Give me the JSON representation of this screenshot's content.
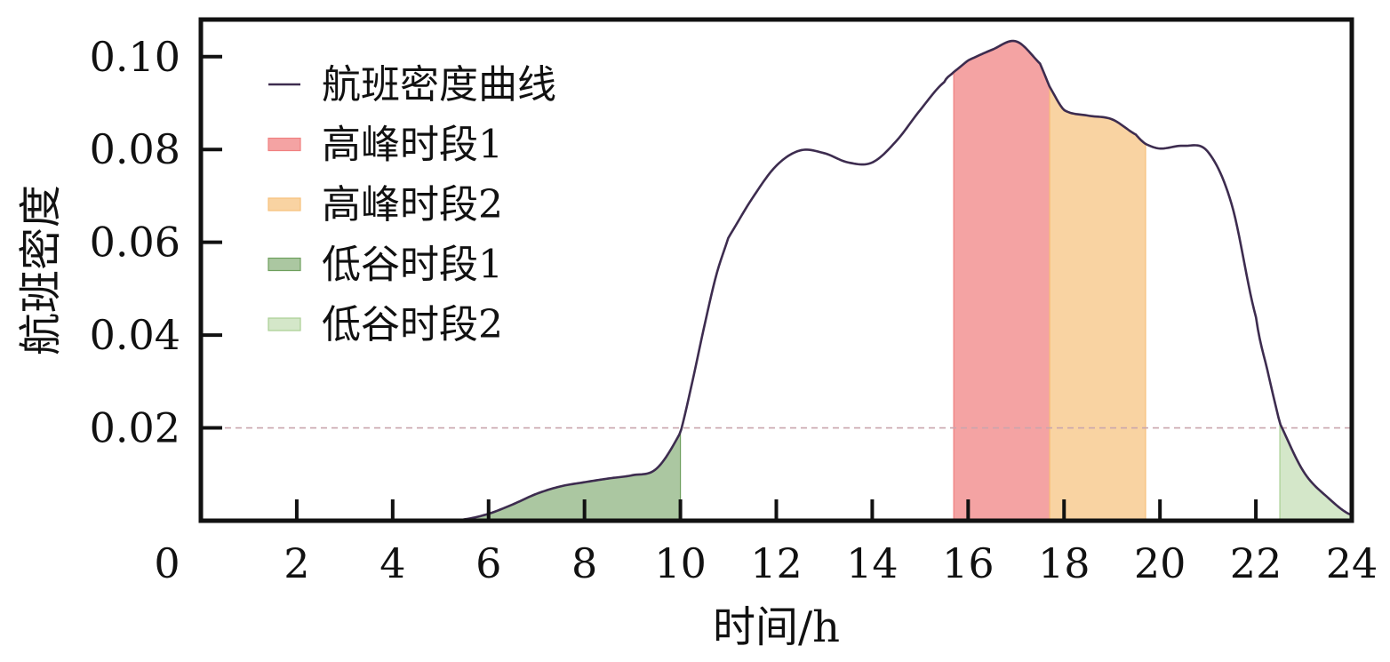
{
  "chart_data": {
    "type": "area",
    "xlabel": "时间/h",
    "ylabel": "航班密度",
    "xlim": [
      0,
      24
    ],
    "ylim": [
      0,
      0.108
    ],
    "x_ticks": [
      "0",
      "2",
      "4",
      "6",
      "8",
      "10",
      "12",
      "14",
      "16",
      "18",
      "20",
      "22",
      "24"
    ],
    "y_ticks": [
      "0.02",
      "0.04",
      "0.06",
      "0.08",
      "0.10"
    ],
    "threshold": 0.02,
    "curve": {
      "name": "航班密度曲线",
      "color": "#3d2c4f",
      "x": [
        0.5,
        5.0,
        5.5,
        6.0,
        6.5,
        7.0,
        7.5,
        8.0,
        8.5,
        9.0,
        9.5,
        10.0,
        10.25,
        10.5,
        10.75,
        11.0,
        11.5,
        12.0,
        12.5,
        13.0,
        13.5,
        14.0,
        14.5,
        15.0,
        15.5,
        15.7,
        16.0,
        16.5,
        17.0,
        17.5,
        17.7,
        18.0,
        18.5,
        19.0,
        19.5,
        19.7,
        20.0,
        20.5,
        21.0,
        21.5,
        22.0,
        22.25,
        22.5,
        23.0,
        23.5,
        24.0
      ],
      "y": [
        0.0,
        0.0,
        0.0003,
        0.0015,
        0.0035,
        0.0058,
        0.0074,
        0.0083,
        0.0091,
        0.0098,
        0.0112,
        0.019,
        0.03,
        0.042,
        0.053,
        0.061,
        0.0695,
        0.0765,
        0.0798,
        0.0792,
        0.0772,
        0.0772,
        0.0818,
        0.0885,
        0.0945,
        0.0967,
        0.0992,
        0.1015,
        0.1033,
        0.0985,
        0.0935,
        0.0885,
        0.0873,
        0.0865,
        0.0832,
        0.0812,
        0.0802,
        0.0808,
        0.0795,
        0.068,
        0.044,
        0.032,
        0.021,
        0.0105,
        0.005,
        0.0012
      ]
    },
    "segments": [
      {
        "name": "高峰时段1",
        "start": 15.7,
        "end": 17.7,
        "color": "#f08080",
        "opacity": 0.72
      },
      {
        "name": "高峰时段2",
        "start": 17.7,
        "end": 19.7,
        "color": "#f7c07a",
        "opacity": 0.7
      },
      {
        "name": "低谷时段1",
        "start": 5.5,
        "end": 10.0,
        "color": "#6e9f5d",
        "opacity": 0.58
      },
      {
        "name": "低谷时段2",
        "start": 22.5,
        "end": 24.0,
        "color": "#a9cf93",
        "opacity": 0.5
      }
    ],
    "legend_position": "top-left",
    "grid": false
  }
}
